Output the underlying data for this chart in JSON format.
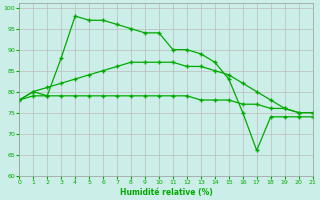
{
  "xlabel": "Humidité relative (%)",
  "bg_color": "#cceee8",
  "line_color": "#00aa00",
  "grid_color": "#bbbbbb",
  "ylim": [
    60,
    101
  ],
  "yticks": [
    60,
    65,
    70,
    75,
    80,
    85,
    90,
    95,
    100
  ],
  "xlim": [
    0,
    21
  ],
  "xticks": [
    0,
    1,
    2,
    3,
    4,
    5,
    6,
    7,
    8,
    9,
    10,
    11,
    12,
    13,
    14,
    15,
    16,
    17,
    18,
    19,
    20,
    21
  ],
  "s1_x": [
    0,
    1,
    2,
    3,
    4,
    5,
    6,
    7,
    8,
    9,
    10,
    11,
    12,
    13,
    14,
    15,
    16,
    17,
    18,
    19,
    20,
    21
  ],
  "s1_y": [
    78,
    80,
    79,
    88,
    98,
    97,
    97,
    96,
    95,
    94,
    94,
    90,
    90,
    89,
    87,
    83,
    75,
    66,
    74,
    74,
    74,
    74
  ],
  "s2_x": [
    0,
    1,
    2,
    3,
    4,
    5,
    6,
    7,
    8,
    9,
    10,
    11,
    12,
    13,
    14,
    15,
    16,
    17,
    18,
    19,
    20,
    21
  ],
  "s2_y": [
    78,
    80,
    81,
    82,
    83,
    84,
    85,
    86,
    87,
    87,
    87,
    87,
    86,
    86,
    85,
    84,
    82,
    80,
    78,
    76,
    75,
    75
  ],
  "s3_x": [
    0,
    1,
    2,
    3,
    4,
    5,
    6,
    7,
    8,
    9,
    10,
    11,
    12,
    13,
    14,
    15,
    16,
    17,
    18,
    19,
    20,
    21
  ],
  "s3_y": [
    78,
    79,
    79,
    79,
    79,
    79,
    79,
    79,
    79,
    79,
    79,
    79,
    79,
    78,
    78,
    78,
    77,
    77,
    76,
    76,
    75,
    75
  ]
}
